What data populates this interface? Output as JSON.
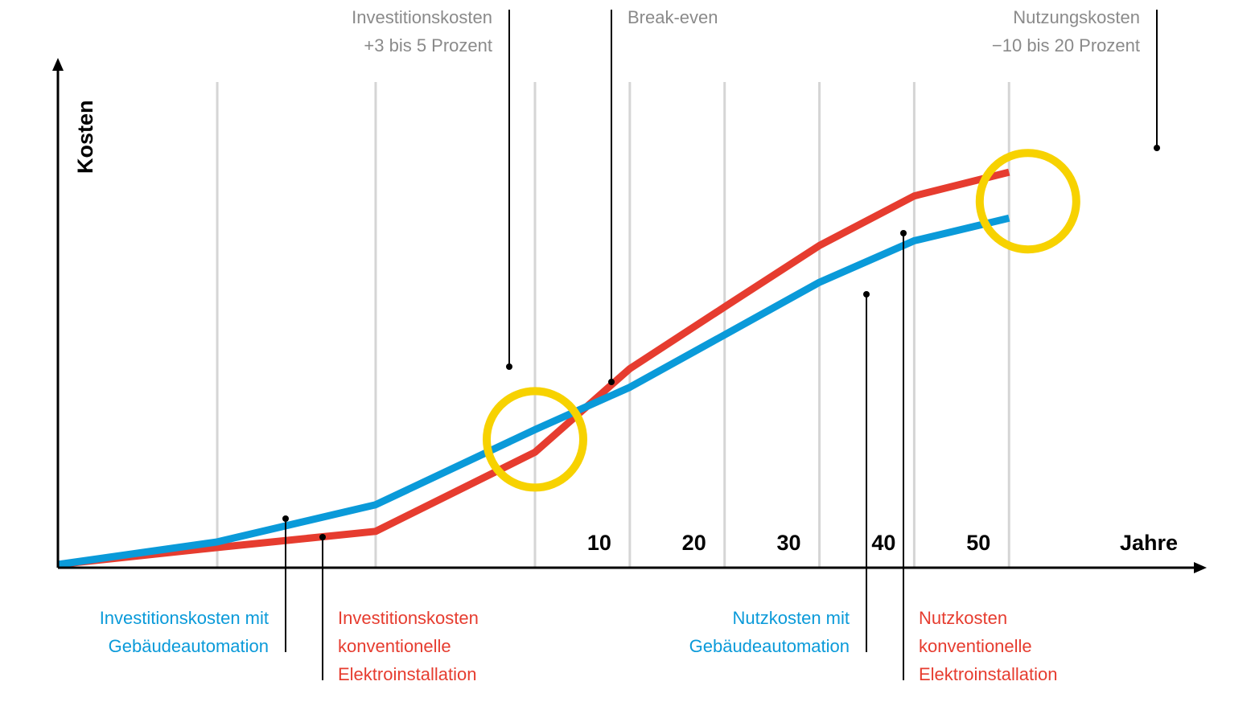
{
  "chart_data": {
    "type": "line",
    "title": "",
    "xlabel": "Jahre",
    "ylabel": "Kosten",
    "x_tick_labels": [
      "10",
      "20",
      "30",
      "40",
      "50"
    ],
    "grid": true,
    "colors": {
      "blue": "#0a9ad9",
      "red": "#e63c2f",
      "highlight": "#f7d200",
      "gridline": "#d5d5d5",
      "gray_text": "#8a8a8a",
      "axis": "#000000"
    },
    "x_note": "Phases before year 0 are unlabeled; x values: -5 ... 0 = planning/investment phase, then years",
    "series": [
      {
        "name": "Gebäudeautomation",
        "color": "#0a9ad9",
        "points": [
          {
            "x": -5,
            "y": 0
          },
          {
            "x": -3.33,
            "y": 5.6
          },
          {
            "x": -1.67,
            "y": 14.8
          },
          {
            "x": 0,
            "y": 33.4
          },
          {
            "x": 10,
            "y": 43.9
          },
          {
            "x": 20,
            "y": 56.9
          },
          {
            "x": 30,
            "y": 69.9
          },
          {
            "x": 40,
            "y": 80.2
          },
          {
            "x": 50,
            "y": 85.8
          }
        ]
      },
      {
        "name": "Konventionelle Elektroinstallation",
        "color": "#e63c2f",
        "points": [
          {
            "x": -5,
            "y": 0
          },
          {
            "x": -3.33,
            "y": 4.2
          },
          {
            "x": -1.67,
            "y": 8.2
          },
          {
            "x": 0,
            "y": 27.8
          },
          {
            "x": 10,
            "y": 48.5
          },
          {
            "x": 20,
            "y": 63.8
          },
          {
            "x": 30,
            "y": 79.0
          },
          {
            "x": 40,
            "y": 91.3
          },
          {
            "x": 50,
            "y": 97.2
          }
        ]
      }
    ],
    "highlights": [
      {
        "x": 0,
        "y": 31.0
      },
      {
        "x": 52,
        "y": 90.0
      }
    ],
    "annotations": [
      {
        "id": "invest-ga",
        "color": "blue",
        "lines": [
          "Investitionskosten mit",
          "Gebäudeautomation"
        ],
        "position": "bottom",
        "align": "right"
      },
      {
        "id": "invest-konv",
        "color": "red",
        "lines": [
          "Investitionskosten",
          "konventionelle",
          "Elektroinstallation"
        ],
        "position": "bottom",
        "align": "left"
      },
      {
        "id": "nutz-ga",
        "color": "blue",
        "lines": [
          "Nutzkosten mit",
          "Gebäudeautomation"
        ],
        "position": "bottom",
        "align": "right"
      },
      {
        "id": "nutz-konv",
        "color": "red",
        "lines": [
          "Nutzkosten",
          "konventionelle",
          "Elektroinstallation"
        ],
        "position": "bottom",
        "align": "left"
      },
      {
        "id": "invest-delta",
        "color": "gray",
        "lines": [
          "Investitionskosten",
          "+3 bis 5 Prozent"
        ],
        "position": "top",
        "align": "right"
      },
      {
        "id": "break-even",
        "color": "gray",
        "lines": [
          "Break-even"
        ],
        "position": "top",
        "align": "left"
      },
      {
        "id": "nutz-delta",
        "color": "gray",
        "lines": [
          "Nutzungskosten",
          "−10 bis 20 Prozent"
        ],
        "position": "top",
        "align": "right"
      }
    ]
  }
}
